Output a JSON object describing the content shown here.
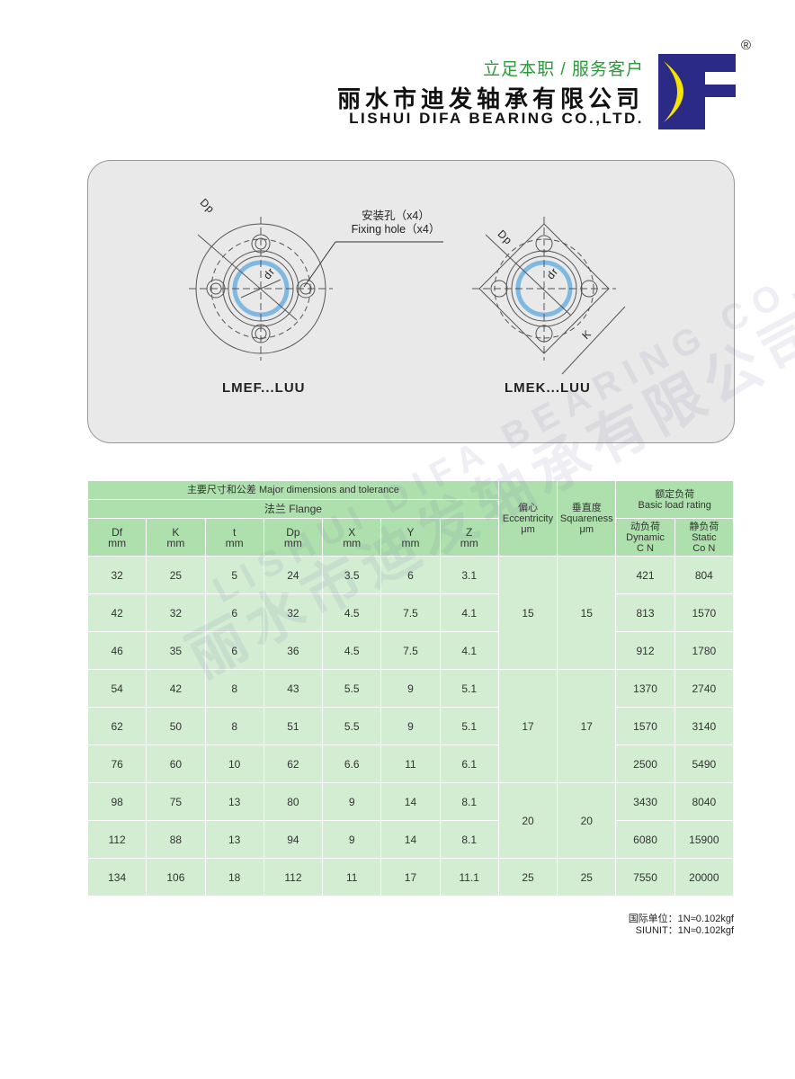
{
  "header": {
    "slogan": "立足本职 / 服务客户",
    "company_cn": "丽水市迪发轴承有限公司",
    "company_en": "LISHUI DIFA BEARING CO.,LTD.",
    "registered": "®",
    "logo_text": "DF",
    "colors": {
      "logo_blue": "#2b2a86",
      "logo_yellow": "#f5e400",
      "slogan_green": "#2a9a3a"
    }
  },
  "diagram": {
    "fixing_hole_cn": "安装孔（x4）",
    "fixing_hole_en": "Fixing hole（x4）",
    "left_model": "LMEF...LUU",
    "right_model": "LMEK...LUU",
    "labels": {
      "dp": "Dp",
      "dr": "dr",
      "k": "K"
    }
  },
  "watermark": {
    "cn": "丽水市迪发轴承有限公司",
    "en": "LISHUI DIFA BEARING CO.,LTD."
  },
  "table": {
    "group_header": "主要尺寸和公差 Major dimensions and tolerance",
    "flange_header": "法兰 Flange",
    "ecc_header": [
      "偏心",
      "Eccentricity",
      "μm"
    ],
    "sq_header": [
      "垂直度",
      "Squareness",
      "μm"
    ],
    "load_header": [
      "额定负荷",
      "Basic load rating"
    ],
    "dynamic_header": [
      "动负荷",
      "Dynamic",
      "C N"
    ],
    "static_header": [
      "静负荷",
      "Static",
      "Co N"
    ],
    "columns": [
      [
        "Df",
        "mm"
      ],
      [
        "K",
        "mm"
      ],
      [
        "t",
        "mm"
      ],
      [
        "Dp",
        "mm"
      ],
      [
        "X",
        "mm"
      ],
      [
        "Y",
        "mm"
      ],
      [
        "Z",
        "mm"
      ]
    ],
    "rows": [
      [
        "32",
        "25",
        "5",
        "24",
        "3.5",
        "6",
        "3.1",
        "421",
        "804"
      ],
      [
        "42",
        "32",
        "6",
        "32",
        "4.5",
        "7.5",
        "4.1",
        "813",
        "1570"
      ],
      [
        "46",
        "35",
        "6",
        "36",
        "4.5",
        "7.5",
        "4.1",
        "912",
        "1780"
      ],
      [
        "54",
        "42",
        "8",
        "43",
        "5.5",
        "9",
        "5.1",
        "1370",
        "2740"
      ],
      [
        "62",
        "50",
        "8",
        "51",
        "5.5",
        "9",
        "5.1",
        "1570",
        "3140"
      ],
      [
        "76",
        "60",
        "10",
        "62",
        "6.6",
        "11",
        "6.1",
        "2500",
        "5490"
      ],
      [
        "98",
        "75",
        "13",
        "80",
        "9",
        "14",
        "8.1",
        "3430",
        "8040"
      ],
      [
        "112",
        "88",
        "13",
        "94",
        "9",
        "14",
        "8.1",
        "6080",
        "15900"
      ],
      [
        "134",
        "106",
        "18",
        "112",
        "11",
        "17",
        "11.1",
        "7550",
        "20000"
      ]
    ],
    "eccentricity_groups": [
      {
        "rows": 3,
        "value": "15"
      },
      {
        "rows": 3,
        "value": "17"
      },
      {
        "rows": 2,
        "value": "20"
      },
      {
        "rows": 1,
        "value": "25"
      }
    ],
    "squareness_groups": [
      {
        "rows": 3,
        "value": "15"
      },
      {
        "rows": 3,
        "value": "17"
      },
      {
        "rows": 2,
        "value": "20"
      },
      {
        "rows": 1,
        "value": "25"
      }
    ]
  },
  "footer": {
    "line1": "国际单位：1N≈0.102kgf",
    "line2": "SIUNIT：1N≈0.102kgf"
  }
}
